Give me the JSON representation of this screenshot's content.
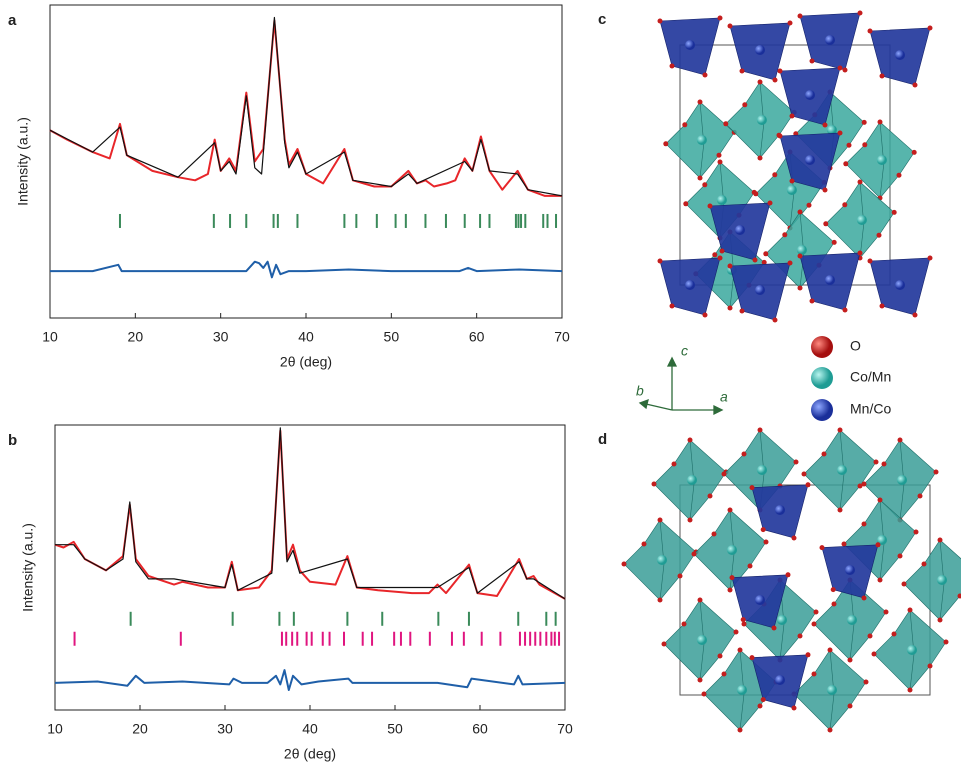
{
  "chart_data": [
    {
      "type": "line",
      "panel_label": "a",
      "x_label": "2θ (deg)",
      "y_label": "Intensity (a.u.)",
      "xlim": [
        10,
        70
      ],
      "xticks": [
        10,
        20,
        30,
        40,
        50,
        60,
        70
      ],
      "ylim": [
        0,
        100
      ],
      "series": [
        {
          "name": null,
          "kind": "observed",
          "color": "#e8262a",
          "x": [
            10,
            12,
            15,
            17,
            18.2,
            19,
            22,
            25,
            27,
            28.5,
            29.3,
            30,
            31,
            31.8,
            33,
            34,
            35,
            36.3,
            37.5,
            38,
            39,
            40,
            42,
            44.5,
            45.5,
            48,
            50,
            52,
            53,
            54,
            55,
            56.5,
            57.5,
            58.6,
            59.5,
            60.5,
            61.5,
            63,
            64.8,
            66,
            68,
            70
          ],
          "values": [
            60,
            57,
            53,
            51,
            62,
            52,
            47,
            45,
            44,
            46,
            57,
            47,
            51,
            47,
            72,
            50,
            54,
            95,
            57,
            49,
            54,
            46,
            43,
            54,
            44,
            42,
            42,
            47,
            43,
            44,
            42,
            43,
            44,
            51,
            47,
            58,
            47,
            41,
            47,
            41,
            39,
            39
          ]
        },
        {
          "name": null,
          "kind": "calculated",
          "color": "#111111",
          "x": [
            10,
            15,
            18.2,
            19,
            25,
            29.3,
            30,
            31,
            31.8,
            33,
            34,
            34.8,
            36.3,
            37.5,
            38,
            39,
            40,
            44.5,
            45.5,
            50,
            52,
            53,
            58.6,
            59.5,
            60.5,
            61.5,
            64.8,
            66,
            70
          ],
          "values": [
            60,
            53,
            61,
            52,
            45,
            56,
            47,
            50,
            46,
            71,
            48,
            46,
            96,
            56,
            48,
            53,
            46,
            53,
            44,
            42,
            46,
            43,
            50,
            47,
            57,
            47,
            46,
            41,
            39
          ]
        },
        {
          "name": null,
          "kind": "difference",
          "color": "#1f5fa8",
          "x": [
            10,
            15,
            18,
            18.4,
            19,
            25,
            30,
            33,
            34,
            34.5,
            35,
            35.5,
            36,
            36.5,
            37,
            38,
            40,
            45,
            50,
            58,
            59,
            60,
            65,
            70
          ],
          "values": [
            15,
            15,
            17,
            15,
            15,
            15,
            15,
            15,
            18,
            17.5,
            16,
            18,
            13,
            17,
            14,
            15,
            15,
            15.5,
            15,
            15,
            16,
            15,
            15.5,
            15
          ],
          "dense": true
        },
        {
          "name": null,
          "kind": "bragg",
          "color": "#3a8a5a",
          "y": 31,
          "x": [
            18.2,
            29.2,
            31.1,
            33.0,
            36.2,
            36.7,
            39.0,
            44.5,
            45.9,
            48.3,
            50.5,
            51.7,
            54.0,
            56.4,
            58.6,
            60.4,
            61.5,
            64.6,
            64.9,
            65.2,
            65.7,
            67.8,
            68.3,
            69.3
          ]
        }
      ]
    },
    {
      "type": "line",
      "panel_label": "b",
      "x_label": "2θ (deg)",
      "y_label": "Intensity (a.u.)",
      "xlim": [
        10,
        70
      ],
      "xticks": [
        10,
        20,
        30,
        40,
        50,
        60,
        70
      ],
      "ylim": [
        0,
        100
      ],
      "series": [
        {
          "name": null,
          "kind": "observed",
          "color": "#e8262a",
          "x": [
            10,
            11,
            12.2,
            13.5,
            16,
            18,
            18.8,
            19.5,
            21,
            24,
            25,
            28,
            30,
            30.8,
            31.5,
            34,
            35.5,
            36.5,
            37.3,
            38,
            38.8,
            40,
            43,
            44.4,
            45.5,
            48,
            52,
            54,
            55,
            56,
            58.7,
            59.7,
            62,
            64.6,
            65.5,
            66.3,
            67,
            70
          ],
          "values": [
            58,
            57,
            59,
            53,
            49,
            54,
            72,
            53,
            47,
            44,
            45,
            43,
            43,
            52,
            42,
            43,
            49,
            98,
            53,
            58,
            49,
            45,
            44,
            54,
            43,
            42,
            41,
            41,
            44,
            41,
            51,
            41,
            40,
            53,
            46,
            47,
            44,
            39
          ]
        },
        {
          "name": null,
          "kind": "calculated",
          "color": "#111111",
          "x": [
            10,
            12.2,
            13.5,
            16,
            18,
            18.8,
            19.5,
            21,
            24,
            30,
            30.8,
            31.5,
            35.5,
            36.5,
            37.3,
            38,
            38.8,
            44.4,
            45.5,
            55,
            58.7,
            59.7,
            64.6,
            65.5,
            66.3,
            70
          ],
          "values": [
            58,
            58,
            53,
            49,
            53,
            73,
            52,
            46,
            46,
            43,
            51,
            42,
            48,
            99,
            52,
            56,
            48,
            53,
            43,
            43,
            50,
            41,
            52,
            46,
            46,
            39
          ]
        },
        {
          "name": null,
          "kind": "difference",
          "color": "#1f5fa8",
          "x": [
            10,
            15,
            18.5,
            19.5,
            20.5,
            25,
            30.5,
            31,
            32,
            35,
            36,
            36.5,
            37,
            37.5,
            38,
            39,
            41,
            44.5,
            45,
            55,
            58.5,
            59,
            64,
            64.5,
            65,
            70
          ],
          "values": [
            9.5,
            10,
            8.5,
            12,
            9.5,
            10,
            9,
            11,
            9.5,
            9.5,
            12,
            9,
            14,
            7,
            12,
            9,
            10,
            11,
            9.5,
            9.5,
            8,
            11,
            9,
            12,
            9,
            9.5
          ]
        },
        {
          "name": null,
          "kind": "bragg",
          "color": "#3a8a5a",
          "y": 32,
          "x": [
            18.9,
            30.9,
            36.4,
            38.1,
            44.4,
            48.5,
            55.1,
            58.7,
            64.5,
            67.8,
            68.9
          ]
        },
        {
          "name": null,
          "kind": "bragg",
          "color": "#e0157f",
          "y": 25,
          "x": [
            12.3,
            24.8,
            36.7,
            37.2,
            37.9,
            38.5,
            39.6,
            40.2,
            41.5,
            42.3,
            44.0,
            46.2,
            47.3,
            49.9,
            50.7,
            51.8,
            54.1,
            56.7,
            58.1,
            60.2,
            62.4,
            64.7,
            65.3,
            65.9,
            66.5,
            67.1,
            67.8,
            68.4,
            68.8,
            69.3
          ]
        }
      ]
    }
  ],
  "structures": {
    "panel_c": "c",
    "panel_d": "d",
    "legend": [
      "O",
      "Co/Mn",
      "Mn/Co"
    ],
    "axes": {
      "c": "c",
      "b": "b",
      "a": "a"
    }
  }
}
